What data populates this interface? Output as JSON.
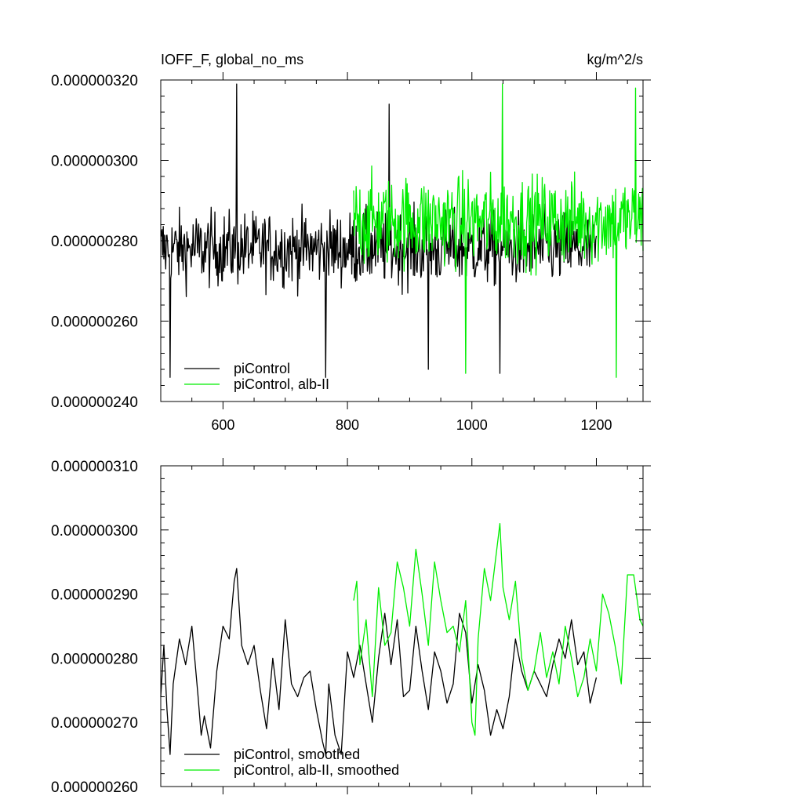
{
  "chart_data": [
    {
      "type": "line",
      "title_left": "IOFF_F, global_no_ms",
      "title_right": "kg/m^2/s",
      "xlim": [
        500,
        1275
      ],
      "ylim": [
        2.4e-07,
        3.2e-07
      ],
      "xticks": [
        600,
        800,
        1000,
        1200
      ],
      "xtick_labels": [
        "600",
        "800",
        "1000",
        "1200"
      ],
      "yticks": [
        2.4e-07,
        2.6e-07,
        2.8e-07,
        3e-07,
        3.2e-07
      ],
      "ytick_labels": [
        "0.000000240",
        "0.000000260",
        "0.000000280",
        "0.000000300",
        "0.000000320"
      ],
      "legend_position": "bottom-left",
      "series": [
        {
          "name": "piControl",
          "color": "#000000",
          "x_range": [
            500,
            1200
          ],
          "mean": 2.78e-07,
          "spread": 1e-08,
          "peaks": [
            [
              622,
              3.19e-07
            ],
            [
              867,
              3.14e-07
            ]
          ],
          "troughs": [
            [
              515,
              2.46e-07
            ],
            [
              765,
              2.46e-07
            ],
            [
              930,
              2.48e-07
            ],
            [
              1045,
              2.47e-07
            ]
          ]
        },
        {
          "name": "piControl, alb-II",
          "color": "#00ee00",
          "x_range": [
            810,
            1275
          ],
          "mean": 2.85e-07,
          "spread": 1.2e-08,
          "peaks": [
            [
              1049,
              3.19e-07
            ],
            [
              1263,
              3.18e-07
            ]
          ],
          "troughs": [
            [
              990,
              2.47e-07
            ],
            [
              1232,
              2.46e-07
            ]
          ]
        }
      ]
    },
    {
      "type": "line",
      "xlim": [
        500,
        1275
      ],
      "ylim": [
        2.6e-07,
        3.1e-07
      ],
      "xticks": [
        600,
        800,
        1000,
        1200
      ],
      "xtick_labels": [],
      "yticks": [
        2.6e-07,
        2.7e-07,
        2.8e-07,
        2.9e-07,
        3e-07,
        3.1e-07
      ],
      "ytick_labels": [
        "0.000000260",
        "0.000000270",
        "0.000000280",
        "0.000000290",
        "0.000000300",
        "0.000000310"
      ],
      "legend_position": "bottom-left",
      "series": [
        {
          "name": "piControl, smoothed",
          "color": "#000000",
          "x": [
            500,
            505,
            510,
            515,
            520,
            530,
            540,
            550,
            560,
            565,
            570,
            580,
            590,
            600,
            610,
            618,
            622,
            630,
            640,
            650,
            660,
            670,
            680,
            690,
            700,
            710,
            720,
            730,
            740,
            750,
            760,
            765,
            770,
            780,
            790,
            800,
            810,
            820,
            830,
            840,
            850,
            860,
            870,
            880,
            890,
            900,
            910,
            920,
            930,
            940,
            950,
            960,
            970,
            980,
            990,
            1000,
            1010,
            1020,
            1030,
            1040,
            1050,
            1060,
            1070,
            1080,
            1090,
            1100,
            1110,
            1120,
            1130,
            1140,
            1150,
            1160,
            1170,
            1180,
            1190,
            1200
          ],
          "values": [
            2.74e-07,
            2.82e-07,
            2.72e-07,
            2.65e-07,
            2.76e-07,
            2.83e-07,
            2.79e-07,
            2.85e-07,
            2.74e-07,
            2.68e-07,
            2.71e-07,
            2.66e-07,
            2.78e-07,
            2.85e-07,
            2.83e-07,
            2.92e-07,
            2.94e-07,
            2.82e-07,
            2.79e-07,
            2.82e-07,
            2.75e-07,
            2.69e-07,
            2.8e-07,
            2.72e-07,
            2.86e-07,
            2.76e-07,
            2.74e-07,
            2.77e-07,
            2.78e-07,
            2.72e-07,
            2.67e-07,
            2.65e-07,
            2.76e-07,
            2.68e-07,
            2.65e-07,
            2.81e-07,
            2.77e-07,
            2.82e-07,
            2.76e-07,
            2.7e-07,
            2.8e-07,
            2.87e-07,
            2.79e-07,
            2.86e-07,
            2.74e-07,
            2.75e-07,
            2.85e-07,
            2.78e-07,
            2.72e-07,
            2.81e-07,
            2.78e-07,
            2.73e-07,
            2.76e-07,
            2.87e-07,
            2.84e-07,
            2.73e-07,
            2.79e-07,
            2.75e-07,
            2.68e-07,
            2.72e-07,
            2.69e-07,
            2.74e-07,
            2.83e-07,
            2.78e-07,
            2.75e-07,
            2.78e-07,
            2.76e-07,
            2.74e-07,
            2.79e-07,
            2.83e-07,
            2.8e-07,
            2.86e-07,
            2.79e-07,
            2.81e-07,
            2.73e-07,
            2.77e-07
          ]
        },
        {
          "name": "piControl, alb-II, smoothed",
          "color": "#00ee00",
          "x": [
            810,
            815,
            820,
            830,
            840,
            850,
            860,
            870,
            880,
            890,
            900,
            910,
            920,
            930,
            940,
            950,
            960,
            970,
            980,
            990,
            1000,
            1005,
            1010,
            1020,
            1030,
            1040,
            1045,
            1050,
            1060,
            1070,
            1080,
            1090,
            1100,
            1110,
            1120,
            1130,
            1140,
            1150,
            1160,
            1170,
            1180,
            1190,
            1200,
            1210,
            1220,
            1230,
            1240,
            1250,
            1260,
            1270,
            1275
          ],
          "values": [
            2.89e-07,
            2.92e-07,
            2.79e-07,
            2.86e-07,
            2.74e-07,
            2.91e-07,
            2.82e-07,
            2.84e-07,
            2.95e-07,
            2.91e-07,
            2.85e-07,
            2.97e-07,
            2.9e-07,
            2.82e-07,
            2.95e-07,
            2.89e-07,
            2.84e-07,
            2.85e-07,
            2.81e-07,
            2.89e-07,
            2.7e-07,
            2.68e-07,
            2.83e-07,
            2.94e-07,
            2.89e-07,
            2.97e-07,
            3.01e-07,
            2.91e-07,
            2.86e-07,
            2.92e-07,
            2.8e-07,
            2.75e-07,
            2.78e-07,
            2.84e-07,
            2.77e-07,
            2.81e-07,
            2.76e-07,
            2.85e-07,
            2.8e-07,
            2.74e-07,
            2.77e-07,
            2.83e-07,
            2.78e-07,
            2.9e-07,
            2.87e-07,
            2.82e-07,
            2.76e-07,
            2.93e-07,
            2.93e-07,
            2.86e-07,
            2.85e-07
          ]
        }
      ]
    }
  ]
}
